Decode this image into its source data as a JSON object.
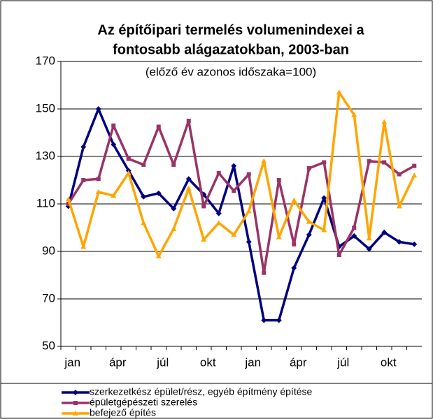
{
  "chart_data": {
    "type": "line",
    "title": [
      "Az építőipari termelés volumenindexei a",
      "fontosabb alágazatokban, 2003-ban"
    ],
    "subtitle": "(előző év azonos időszaka=100)",
    "categories": [
      "jan",
      null,
      null,
      "ápr",
      null,
      null,
      "júl",
      null,
      null,
      "okt",
      null,
      null,
      "jan",
      null,
      null,
      "ápr",
      null,
      null,
      "júl",
      null,
      null,
      "okt",
      null,
      null
    ],
    "series": [
      {
        "name": "szerkezetkész épület/rész, egyéb építmény építése",
        "color": "#000080",
        "marker": "diamond",
        "values": [
          109,
          134,
          150,
          135,
          124,
          113,
          114.5,
          108,
          120.5,
          114,
          106,
          126,
          94,
          61,
          61,
          83,
          97,
          112.5,
          92,
          96.5,
          91,
          98,
          94,
          93
        ]
      },
      {
        "name": "épületgépészeti szerelés",
        "color": "#993366",
        "marker": "square",
        "values": [
          110,
          120,
          120.5,
          143,
          129,
          126.5,
          142.5,
          126.5,
          145,
          109,
          123,
          115.5,
          122.5,
          81,
          120,
          93,
          125,
          127.5,
          88.5,
          100,
          128,
          127.5,
          122.5,
          126
        ]
      },
      {
        "name": "befejező építés",
        "color": "#FFA500",
        "marker": "triangle",
        "values": [
          112,
          92,
          115,
          113.5,
          123,
          102,
          88,
          99.5,
          116.5,
          95,
          102,
          97,
          107,
          128,
          96,
          111.5,
          102.5,
          99,
          157,
          147.5,
          95.5,
          144.5,
          109,
          122
        ]
      }
    ],
    "ylim": [
      50,
      170
    ],
    "yticks": [
      50,
      70,
      90,
      110,
      130,
      150,
      170
    ],
    "grid": true
  }
}
